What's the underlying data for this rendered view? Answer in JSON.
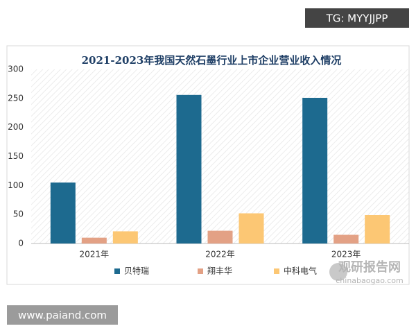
{
  "chart_data": {
    "type": "bar",
    "title": "2021-2023年我国天然石墨行业上市企业营业收入情况",
    "categories": [
      "2021年",
      "2022年",
      "2023年"
    ],
    "series": [
      {
        "name": "贝特瑞",
        "color": "#1d6a8f",
        "values": [
          105,
          256,
          251
        ]
      },
      {
        "name": "翔丰华",
        "color": "#e3a185",
        "values": [
          10,
          22,
          15
        ]
      },
      {
        "name": "中科电气",
        "color": "#fcc774",
        "values": [
          21,
          52,
          49
        ]
      }
    ],
    "ylim": [
      0,
      300
    ],
    "yticks": [
      0,
      50,
      100,
      150,
      200,
      250,
      300
    ],
    "grid": false,
    "legend": "bottom"
  },
  "watermarks": {
    "top_right": "TG: MYYJJPP",
    "bottom_left": "www.paiand.com",
    "logo_name": "观研报告网",
    "logo_url": "chinabaogao.com"
  }
}
